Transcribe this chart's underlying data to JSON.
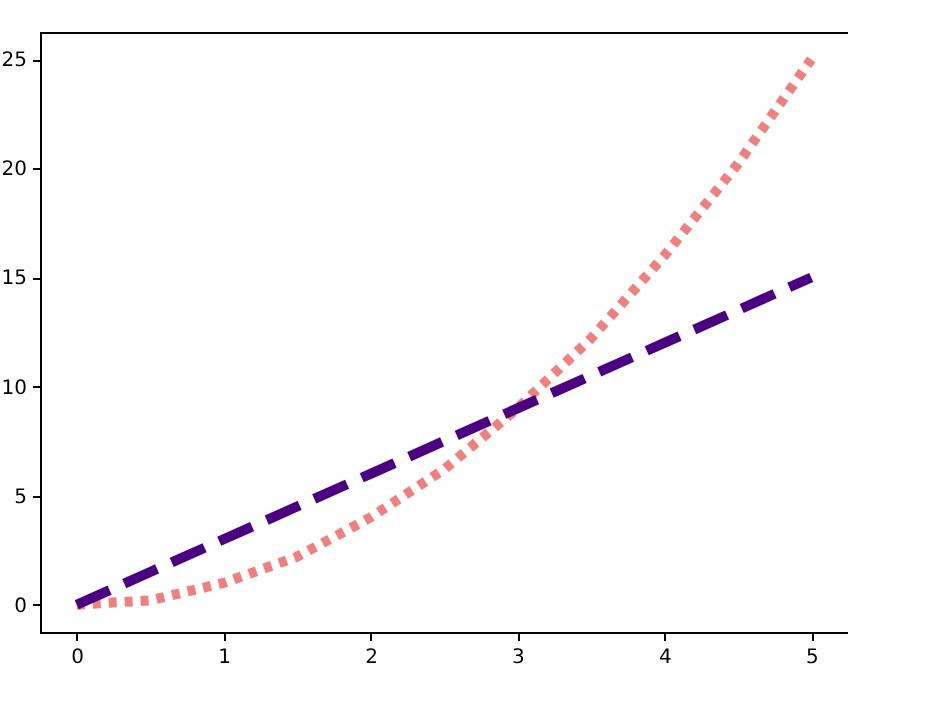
{
  "chart_data": {
    "type": "line",
    "x": [
      0,
      0.5,
      1,
      1.5,
      2,
      2.5,
      3,
      3.5,
      4,
      4.5,
      5
    ],
    "series": [
      {
        "color": "#f08080",
        "line_style": "dotted",
        "values": [
          0,
          0.2,
          1,
          2.2,
          4,
          6.2,
          9,
          12.2,
          16,
          20.2,
          25
        ]
      },
      {
        "color": "#4b0082",
        "line_style": "dashed",
        "values": [
          0,
          1.5,
          3,
          4.5,
          6,
          7.5,
          9,
          10.5,
          12,
          13.5,
          15
        ]
      }
    ],
    "xlim": [
      -0.25,
      5.25
    ],
    "xticks": [
      0,
      1,
      2,
      3,
      4,
      5
    ],
    "ylim": [
      -1.25,
      26.25
    ],
    "yticks": [
      0,
      5,
      10,
      15,
      20,
      25
    ],
    "grid": false,
    "marker": "none"
  }
}
